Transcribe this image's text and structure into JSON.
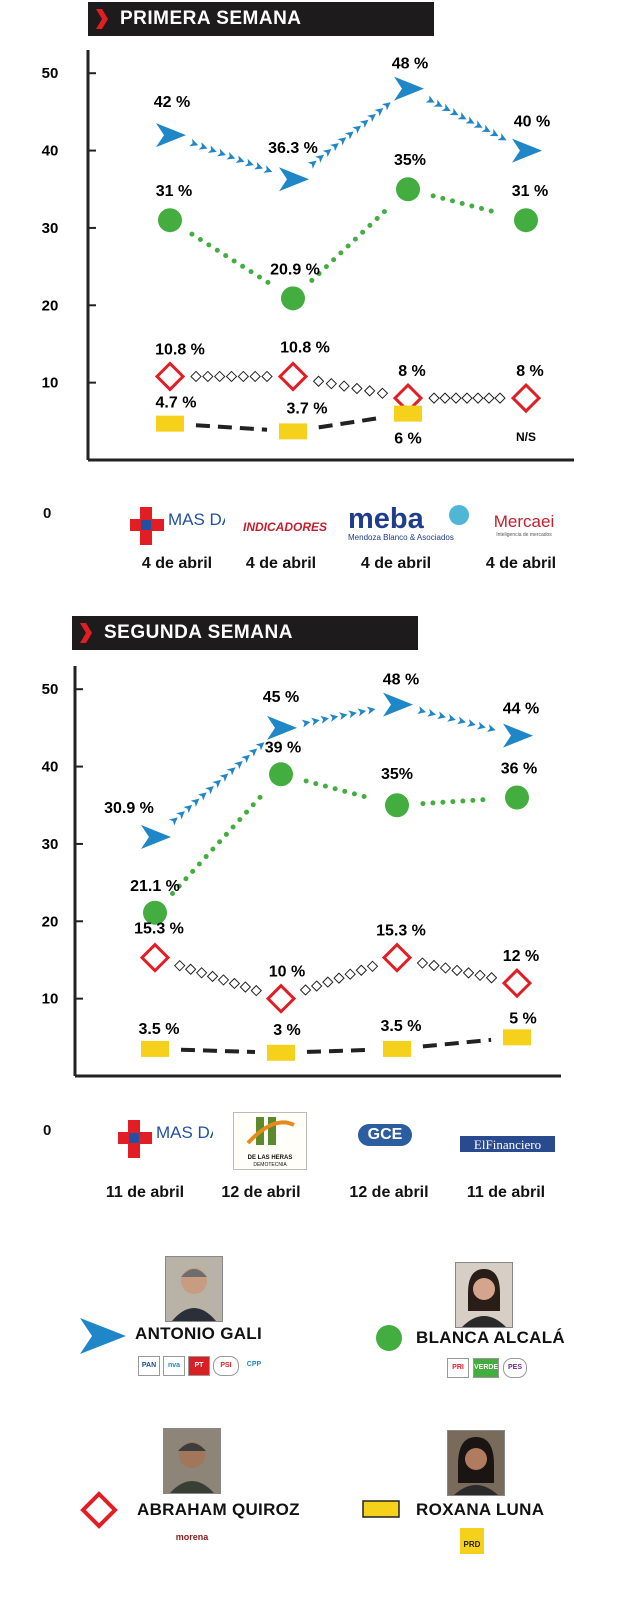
{
  "colors": {
    "gali": "#1f86c7",
    "alcala": "#43ad3f",
    "quiroz": "#e31d24",
    "luna": "#f6d11b",
    "banner": "#1d1b1c"
  },
  "sections": [
    {
      "title": "PRIMERA SEMANA",
      "chart_data": {
        "type": "line",
        "title": "PRIMERA SEMANA",
        "xlabel": "",
        "ylabel": "",
        "y_ticks": [
          10,
          20,
          30,
          40,
          50
        ],
        "zero_label": "0",
        "ylim": [
          0,
          53
        ],
        "grid": false,
        "categories": [
          "MAS DATA",
          "INDICADORES",
          "meba",
          "Mercaei"
        ],
        "series": [
          {
            "name": "ANTONIO GALI",
            "marker": "arrow",
            "values": [
              42,
              36.3,
              48,
              40
            ],
            "labels": [
              "42 %",
              "36.3 %",
              "48 %",
              "40 %"
            ]
          },
          {
            "name": "BLANCA ALCALÁ",
            "marker": "circle",
            "values": [
              31,
              20.9,
              35,
              31
            ],
            "labels": [
              "31 %",
              "20.9 %",
              "35%",
              "31 %"
            ]
          },
          {
            "name": "ABRAHAM QUIROZ",
            "marker": "diamond",
            "values": [
              10.8,
              10.8,
              8,
              8
            ],
            "labels": [
              "10.8 %",
              "10.8 %",
              "8 %",
              "8 %"
            ]
          },
          {
            "name": "ROXANA LUNA",
            "marker": "rect",
            "values": [
              4.7,
              3.7,
              6,
              null
            ],
            "labels": [
              "4.7 %",
              "3.7 %",
              "6 %",
              "N/S"
            ]
          }
        ]
      },
      "pollsters": [
        {
          "name": "MAS DATA",
          "date": "4 de abril"
        },
        {
          "name": "INDICADORES",
          "date": "4 de abril"
        },
        {
          "name": "meba",
          "sub": "Mendoza Blanco & Asociados",
          "date": "4 de abril"
        },
        {
          "name": "Mercaei",
          "sub": "Inteligencia de mercados",
          "date": "4 de abril"
        }
      ]
    },
    {
      "title": "SEGUNDA SEMANA",
      "chart_data": {
        "type": "line",
        "title": "SEGUNDA SEMANA",
        "xlabel": "",
        "ylabel": "",
        "y_ticks": [
          10,
          20,
          30,
          40,
          50
        ],
        "zero_label": "0",
        "ylim": [
          0,
          53
        ],
        "grid": false,
        "categories": [
          "MAS DATA",
          "DE LAS HERAS DEMOTECNIA",
          "GCE",
          "El Financiero"
        ],
        "series": [
          {
            "name": "ANTONIO GALI",
            "marker": "arrow",
            "values": [
              30.9,
              45,
              48,
              44
            ],
            "labels": [
              "30.9 %",
              "45 %",
              "48 %",
              "44 %"
            ]
          },
          {
            "name": "BLANCA ALCALÁ",
            "marker": "circle",
            "values": [
              21.1,
              39,
              35,
              36
            ],
            "labels": [
              "21.1 %",
              "39 %",
              "35%",
              "36 %"
            ]
          },
          {
            "name": "ABRAHAM QUIROZ",
            "marker": "diamond",
            "values": [
              15.3,
              10,
              15.3,
              12
            ],
            "labels": [
              "15.3 %",
              "10 %",
              "15.3 %",
              "12 %"
            ]
          },
          {
            "name": "ROXANA LUNA",
            "marker": "rect",
            "values": [
              3.5,
              3,
              3.5,
              5
            ],
            "labels": [
              "3.5 %",
              "3 %",
              "3.5 %",
              "5 %"
            ]
          }
        ]
      },
      "pollsters": [
        {
          "name": "MAS DATA",
          "date": "11 de abril"
        },
        {
          "name": "DE LAS HERAS",
          "sub": "DEMOTECNIA",
          "date": "12 de abril"
        },
        {
          "name": "GCE",
          "date": "12 de abril"
        },
        {
          "name": "ElFinanciero",
          "date": "11 de abril"
        }
      ]
    }
  ],
  "legend": [
    {
      "name": "ANTONIO GALI",
      "marker": "arrow",
      "parties": [
        "PAN",
        "nva",
        "PT",
        "PSI",
        "CPP"
      ]
    },
    {
      "name": "BLANCA ALCALÁ",
      "marker": "circle",
      "parties": [
        "PRI",
        "VERDE",
        "PES"
      ]
    },
    {
      "name": "ABRAHAM QUIROZ",
      "marker": "diamond",
      "parties": [
        "morena"
      ]
    },
    {
      "name": "ROXANA LUNA",
      "marker": "rect",
      "parties": [
        "PRD"
      ]
    }
  ]
}
